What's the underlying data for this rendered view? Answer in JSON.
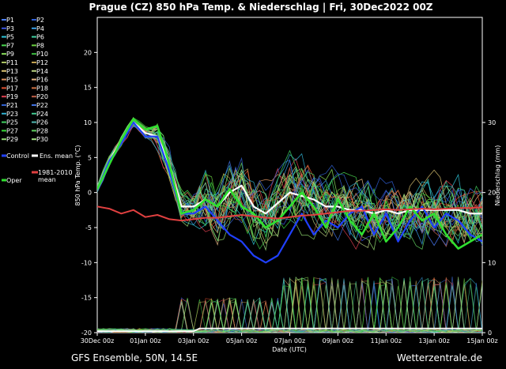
{
  "chart_data": {
    "type": "line",
    "title": "Prague  (CZ)  850 hPa Temp. & Niederschlag | Fri, 30Dec2022 00Z",
    "xlabel": "Date (UTC)",
    "ylabel_left": "850 hPa Temp. (°C)",
    "ylabel_right": "Niederschlag (mm)",
    "x_ticks": [
      "30Dec 00z",
      "01Jan 00z",
      "03Jan 00z",
      "05Jan 00z",
      "07Jan 00z",
      "09Jan 00z",
      "11Jan 00z",
      "13Jan 00z",
      "15Jan 00z"
    ],
    "x_range_hours": [
      0,
      384
    ],
    "y_left_ticks": [
      20,
      15,
      10,
      5,
      0,
      -5,
      -10,
      -15,
      -20
    ],
    "y_left_range": [
      -20,
      25
    ],
    "y_right_ticks": [
      30,
      20,
      10,
      0
    ],
    "y_right_range": [
      0,
      45
    ],
    "grid": false,
    "legend": [
      {
        "name": "P1",
        "color": "#4a7dff"
      },
      {
        "name": "P2",
        "color": "#2f5fd8"
      },
      {
        "name": "P3",
        "color": "#3a56e0"
      },
      {
        "name": "P4",
        "color": "#38a0e8"
      },
      {
        "name": "P5",
        "color": "#2ec5d8"
      },
      {
        "name": "P6",
        "color": "#40d0a0"
      },
      {
        "name": "P7",
        "color": "#4ad850"
      },
      {
        "name": "P8",
        "color": "#6ad040"
      },
      {
        "name": "P9",
        "color": "#8ae05a"
      },
      {
        "name": "P10",
        "color": "#3cc040"
      },
      {
        "name": "P11",
        "color": "#a8c060"
      },
      {
        "name": "P12",
        "color": "#c0a050"
      },
      {
        "name": "P13",
        "color": "#d8c070"
      },
      {
        "name": "P14",
        "color": "#b8d080"
      },
      {
        "name": "P15",
        "color": "#d89060"
      },
      {
        "name": "P16",
        "color": "#e0b080"
      },
      {
        "name": "P17",
        "color": "#e05030"
      },
      {
        "name": "P18",
        "color": "#d07040"
      },
      {
        "name": "P19",
        "color": "#e04050"
      },
      {
        "name": "P20",
        "color": "#c06048"
      },
      {
        "name": "P21",
        "color": "#3060d0"
      },
      {
        "name": "P22",
        "color": "#4070e0"
      },
      {
        "name": "P23",
        "color": "#30b0d0"
      },
      {
        "name": "P24",
        "color": "#40c890"
      },
      {
        "name": "P25",
        "color": "#40d060"
      },
      {
        "name": "P26",
        "color": "#50b8b0"
      },
      {
        "name": "P27",
        "color": "#38d838"
      },
      {
        "name": "P28",
        "color": "#60d060"
      },
      {
        "name": "P29",
        "color": "#90d870"
      },
      {
        "name": "P30",
        "color": "#a0e080"
      },
      {
        "name": "Control",
        "color": "#2040ff"
      },
      {
        "name": "Ens. mean",
        "color": "#ffffff"
      },
      {
        "name": "1981-2010 mean",
        "color": "#e04040"
      },
      {
        "name": "Oper",
        "color": "#30e030"
      }
    ],
    "series": [
      {
        "name": "Ens. mean",
        "x_hours": [
          0,
          12,
          24,
          36,
          48,
          60,
          72,
          84,
          96,
          108,
          120,
          132,
          144,
          156,
          168,
          180,
          192,
          204,
          216,
          228,
          240,
          252,
          264,
          276,
          288,
          300,
          312,
          324,
          336,
          348,
          360,
          372,
          384
        ],
        "values": [
          0.5,
          4.5,
          7.5,
          10,
          8.5,
          8,
          4,
          -2,
          -2,
          -1,
          -2,
          0,
          1,
          -2,
          -3,
          -1.5,
          0,
          -0.5,
          -1,
          -2,
          -2,
          -2.5,
          -2.5,
          -3,
          -2.5,
          -3,
          -2.5,
          -2.5,
          -2.5,
          -2.5,
          -2.5,
          -3,
          -3
        ]
      },
      {
        "name": "Control",
        "x_hours": [
          0,
          12,
          24,
          36,
          48,
          60,
          72,
          84,
          96,
          108,
          120,
          132,
          144,
          156,
          168,
          180,
          192,
          204,
          216,
          228,
          240,
          252,
          264,
          276,
          288,
          300,
          312,
          324,
          336,
          348,
          360,
          372,
          384
        ],
        "values": [
          0.5,
          4.5,
          7,
          10,
          8,
          8,
          3,
          -3,
          -3,
          -2,
          -4,
          -6,
          -7,
          -9,
          -10,
          -9,
          -6,
          -3,
          -6,
          -4,
          -5,
          -3,
          -2,
          -6,
          -3,
          -7,
          -4,
          -2,
          -5,
          -3,
          -4,
          -6,
          -7
        ]
      },
      {
        "name": "Oper",
        "x_hours": [
          0,
          12,
          24,
          36,
          48,
          60,
          72,
          84,
          96,
          108,
          120,
          132,
          144,
          156,
          168,
          180,
          192,
          204,
          216,
          228,
          240,
          252,
          264,
          276,
          288,
          300,
          312,
          324,
          336,
          348,
          360,
          372,
          384
        ],
        "values": [
          0.5,
          4,
          7.5,
          10.5,
          9,
          9.5,
          4,
          -3,
          -2.5,
          -1,
          -2,
          0.5,
          -2,
          -3,
          -5,
          -4,
          -2,
          0,
          -2,
          -5,
          -1,
          -4,
          -6,
          -3,
          -7,
          -5,
          -2,
          -4,
          -3,
          -6,
          -8,
          -7,
          -6
        ]
      },
      {
        "name": "1981-2010 mean",
        "x_hours": [
          0,
          12,
          24,
          36,
          48,
          60,
          72,
          84,
          96,
          108,
          120,
          132,
          144,
          156,
          168,
          180,
          192,
          204,
          216,
          228,
          240,
          252,
          264,
          276,
          288,
          300,
          312,
          324,
          336,
          348,
          360,
          372,
          384
        ],
        "values": [
          -2,
          -2.3,
          -3,
          -2.5,
          -3.5,
          -3.2,
          -3.8,
          -4,
          -3.8,
          -3.6,
          -3.6,
          -3.4,
          -3.2,
          -3.4,
          -3.6,
          -3.7,
          -3.5,
          -3.3,
          -3.2,
          -3,
          -2.8,
          -2.6,
          -2.6,
          -2.5,
          -2.4,
          -2.5,
          -2.4,
          -2.3,
          -2.4,
          -2.3,
          -2.2,
          -2.2,
          -2.1
        ]
      }
    ]
  },
  "footer": {
    "left": "GFS Ensemble, 50N, 14.5E",
    "right": "Wetterzentrale.de"
  }
}
